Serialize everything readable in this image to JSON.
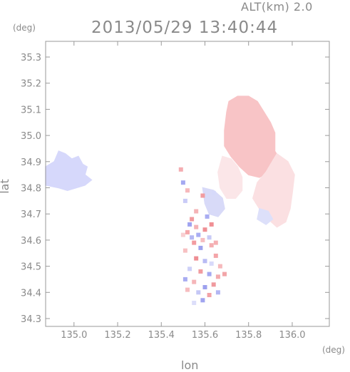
{
  "header": {
    "altitude_label": "ALT(km)",
    "altitude_value": "2.0",
    "timestamp": "2013/05/29 13:40:44"
  },
  "axes": {
    "y_unit": "(deg)",
    "x_unit": "(deg)",
    "x_label": "lon",
    "y_label": "lat",
    "x_ticks": [
      "135.0",
      "135.2",
      "135.4",
      "135.6",
      "135.8",
      "136.0"
    ],
    "y_ticks": [
      "34.3",
      "34.4",
      "34.5",
      "34.6",
      "34.7",
      "34.8",
      "34.9",
      "35.0",
      "35.1",
      "35.2",
      "35.3"
    ]
  },
  "map": {
    "lon_range": [
      134.87,
      136.17
    ],
    "lat_range": [
      34.27,
      35.36
    ],
    "regions": [
      {
        "name": "west-blue",
        "color": "#d6d8fb",
        "polygon": [
          [
            134.87,
            34.88
          ],
          [
            134.91,
            34.9
          ],
          [
            134.93,
            34.94
          ],
          [
            134.96,
            34.93
          ],
          [
            134.99,
            34.91
          ],
          [
            135.02,
            34.92
          ],
          [
            135.04,
            34.89
          ],
          [
            135.06,
            34.88
          ],
          [
            135.05,
            34.85
          ],
          [
            135.08,
            34.83
          ],
          [
            135.05,
            34.81
          ],
          [
            135.01,
            34.8
          ],
          [
            134.97,
            34.79
          ],
          [
            134.93,
            34.8
          ],
          [
            134.87,
            34.81
          ]
        ]
      },
      {
        "name": "northeast-red",
        "color": "#f8c4c6",
        "polygon": [
          [
            135.7,
            35.09
          ],
          [
            135.71,
            35.13
          ],
          [
            135.75,
            35.15
          ],
          [
            135.8,
            35.15
          ],
          [
            135.84,
            35.13
          ],
          [
            135.87,
            35.09
          ],
          [
            135.9,
            35.05
          ],
          [
            135.92,
            35.01
          ],
          [
            135.92,
            34.94
          ],
          [
            135.95,
            34.9
          ],
          [
            135.93,
            34.87
          ],
          [
            135.89,
            34.86
          ],
          [
            135.85,
            34.84
          ],
          [
            135.8,
            34.85
          ],
          [
            135.76,
            34.88
          ],
          [
            135.72,
            34.92
          ],
          [
            135.69,
            34.96
          ],
          [
            135.69,
            35.02
          ]
        ]
      },
      {
        "name": "east-pale-red",
        "color": "#fbe0e2",
        "polygon": [
          [
            135.93,
            34.93
          ],
          [
            135.98,
            34.9
          ],
          [
            136.01,
            34.85
          ],
          [
            136.0,
            34.78
          ],
          [
            135.99,
            34.72
          ],
          [
            135.97,
            34.67
          ],
          [
            135.93,
            34.65
          ],
          [
            135.89,
            34.68
          ],
          [
            135.85,
            34.72
          ],
          [
            135.82,
            34.76
          ],
          [
            135.84,
            34.82
          ],
          [
            135.88,
            34.86
          ]
        ]
      },
      {
        "name": "mid-pale-red",
        "color": "#fbe6e8",
        "polygon": [
          [
            135.68,
            34.92
          ],
          [
            135.72,
            34.91
          ],
          [
            135.75,
            34.88
          ],
          [
            135.77,
            34.84
          ],
          [
            135.77,
            34.79
          ],
          [
            135.74,
            34.76
          ],
          [
            135.7,
            34.76
          ],
          [
            135.67,
            34.8
          ],
          [
            135.66,
            34.86
          ]
        ]
      },
      {
        "name": "center-blue",
        "color": "#d8daf8",
        "polygon": [
          [
            135.59,
            34.8
          ],
          [
            135.64,
            34.79
          ],
          [
            135.68,
            34.76
          ],
          [
            135.69,
            34.72
          ],
          [
            135.66,
            34.69
          ],
          [
            135.62,
            34.7
          ],
          [
            135.6,
            34.74
          ]
        ]
      },
      {
        "name": "southeast-blue",
        "color": "#dde0fa",
        "polygon": [
          [
            135.85,
            34.72
          ],
          [
            135.89,
            34.71
          ],
          [
            135.91,
            34.68
          ],
          [
            135.88,
            34.66
          ],
          [
            135.84,
            34.68
          ]
        ]
      }
    ],
    "cells": [
      [
        135.54,
        34.68,
        "#f09a9e"
      ],
      [
        135.53,
        34.66,
        "#9fa3f0"
      ],
      [
        135.56,
        34.65,
        "#f4b2b5"
      ],
      [
        135.52,
        34.63,
        "#f5a7ab"
      ],
      [
        135.57,
        34.62,
        "#a9adf3"
      ],
      [
        135.6,
        34.64,
        "#ef8f94"
      ],
      [
        135.62,
        34.61,
        "#c8caf6"
      ],
      [
        135.55,
        34.59,
        "#f29ca0"
      ],
      [
        135.58,
        34.57,
        "#9ea2ee"
      ],
      [
        135.63,
        34.58,
        "#f4aeb1"
      ],
      [
        135.51,
        34.56,
        "#f7c0c2"
      ],
      [
        135.56,
        34.53,
        "#ee8e93"
      ],
      [
        135.6,
        34.52,
        "#b8bbf4"
      ],
      [
        135.65,
        34.54,
        "#f4a5a9"
      ],
      [
        135.67,
        34.5,
        "#f6b9bc"
      ],
      [
        135.53,
        34.49,
        "#cdd0f8"
      ],
      [
        135.58,
        34.48,
        "#f19ca0"
      ],
      [
        135.62,
        34.47,
        "#a5a9f1"
      ],
      [
        135.66,
        34.46,
        "#f3abaf"
      ],
      [
        135.55,
        34.44,
        "#f5b6b9"
      ],
      [
        135.6,
        34.42,
        "#9da1ee"
      ],
      [
        135.64,
        34.43,
        "#f09a9e"
      ],
      [
        135.57,
        34.4,
        "#c5c8f6"
      ],
      [
        135.62,
        34.39,
        "#f2a3a7"
      ],
      [
        135.52,
        34.41,
        "#f6bcbf"
      ],
      [
        135.66,
        34.4,
        "#b3b6f3"
      ],
      [
        135.59,
        34.37,
        "#a0a4ef"
      ],
      [
        135.55,
        34.36,
        "#dcdefa"
      ],
      [
        135.49,
        34.87,
        "#f4adb1"
      ],
      [
        135.5,
        34.82,
        "#a5a9f1"
      ],
      [
        135.52,
        34.79,
        "#f6b8bb"
      ],
      [
        135.51,
        34.75,
        "#c9cbf7"
      ],
      [
        135.59,
        34.77,
        "#f19ca0"
      ],
      [
        135.64,
        34.78,
        "#d6d9fa"
      ],
      [
        135.56,
        34.71,
        "#f4b3b6"
      ],
      [
        135.61,
        34.69,
        "#a9adf2"
      ],
      [
        135.63,
        34.66,
        "#f08f94"
      ],
      [
        135.59,
        34.6,
        "#f6bdc0"
      ],
      [
        135.54,
        34.61,
        "#b5b8f3"
      ],
      [
        135.65,
        34.59,
        "#f5b0b3"
      ],
      [
        135.5,
        34.62,
        "#f8cfd1"
      ],
      [
        135.69,
        34.47,
        "#f2a5a8"
      ],
      [
        135.51,
        34.45,
        "#a8acf1"
      ],
      [
        135.63,
        34.51,
        "#d8dafa"
      ]
    ]
  }
}
